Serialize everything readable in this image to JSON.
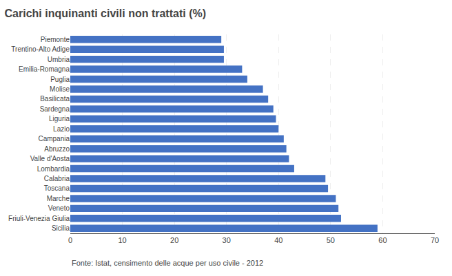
{
  "chart_data": {
    "type": "bar",
    "orientation": "horizontal",
    "title": "Carichi inquinanti civili non trattati (%)",
    "categories": [
      "Sicilia",
      "Friuli-Venezia Giulia",
      "Veneto",
      "Marche",
      "Toscana",
      "Calabria",
      "Lombardia",
      "Valle d'Aosta",
      "Abruzzo",
      "Campania",
      "Lazio",
      "Liguria",
      "Sardegna",
      "Basilicata",
      "Molise",
      "Puglia",
      "Emilia-Romagna",
      "Umbria",
      "Trentino-Alto Adige",
      "Piemonte"
    ],
    "values": [
      59,
      52,
      51.5,
      51,
      49.5,
      49,
      43,
      42,
      41.5,
      41,
      40,
      39.5,
      39,
      38,
      37,
      34,
      33,
      29.5,
      29.5,
      29
    ],
    "color": "#4472C4",
    "xlim": [
      0,
      70
    ],
    "xticks": [
      0,
      10,
      20,
      30,
      40,
      50,
      60,
      70
    ],
    "grid": true,
    "annotations": [
      "Fonte: Istat, censimento delle acque per uso civile - 2012"
    ]
  }
}
